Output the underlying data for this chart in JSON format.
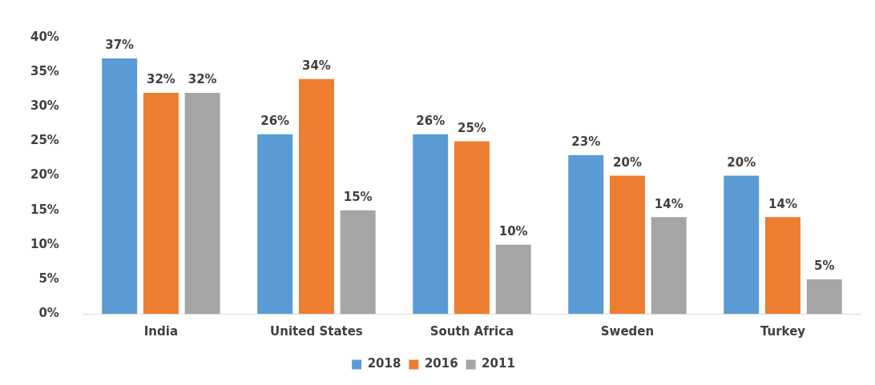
{
  "chart_data": {
    "type": "bar",
    "categories": [
      "India",
      "United States",
      "South Africa",
      "Sweden",
      "Turkey"
    ],
    "series": [
      {
        "name": "2018",
        "color": "#5b9bd5",
        "values": [
          37,
          26,
          26,
          23,
          20
        ],
        "value_labels": [
          "37%",
          "26%",
          "26%",
          "23%",
          "20%"
        ]
      },
      {
        "name": "2016",
        "color": "#ed7d31",
        "values": [
          32,
          34,
          25,
          20,
          14
        ],
        "value_labels": [
          "32%",
          "34%",
          "25%",
          "20%",
          "14%"
        ]
      },
      {
        "name": "2011",
        "color": "#a5a5a5",
        "values": [
          32,
          15,
          10,
          14,
          5
        ],
        "value_labels": [
          "32%",
          "15%",
          "10%",
          "14%",
          "5%"
        ]
      }
    ],
    "ylim": [
      0,
      40
    ],
    "yticks": [
      {
        "value": 0,
        "label": "0%"
      },
      {
        "value": 5,
        "label": "5%"
      },
      {
        "value": 10,
        "label": "10%"
      },
      {
        "value": 15,
        "label": "15%"
      },
      {
        "value": 20,
        "label": "20%"
      },
      {
        "value": 25,
        "label": "25%"
      },
      {
        "value": 30,
        "label": "30%"
      },
      {
        "value": 35,
        "label": "35%"
      },
      {
        "value": 40,
        "label": "40%"
      }
    ],
    "grid": false,
    "legend": "bottom"
  }
}
